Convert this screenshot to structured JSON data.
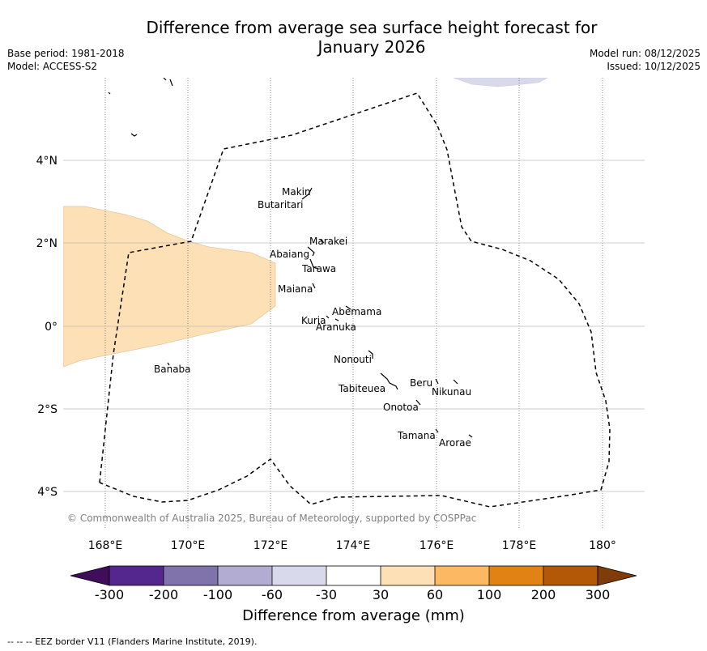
{
  "title_line1": "Difference from average sea surface height forecast for",
  "title_line2": "January 2026",
  "meta_left": [
    "Base period: 1981-2018",
    "Model: ACCESS-S2"
  ],
  "meta_right": [
    "Model run: 08/12/2025",
    "Issued: 10/12/2025"
  ],
  "map": {
    "lon_ticks": [
      "168°E",
      "170°E",
      "172°E",
      "174°E",
      "176°E",
      "178°E",
      "180°"
    ],
    "lat_ticks": [
      "4°N",
      "2°N",
      "0°",
      "2°S",
      "4°S"
    ],
    "copyright": "© Commonwealth of Australia 2025, Bureau of Meteorology, supported by COSPPac",
    "islands": [
      {
        "name": "Makin"
      },
      {
        "name": "Butaritari"
      },
      {
        "name": "Marakei"
      },
      {
        "name": "Abaiang"
      },
      {
        "name": "Tarawa"
      },
      {
        "name": "Maiana"
      },
      {
        "name": "Abemama"
      },
      {
        "name": "Kuria"
      },
      {
        "name": "Aranuka"
      },
      {
        "name": "Nonouti"
      },
      {
        "name": "Banaba"
      },
      {
        "name": "Beru"
      },
      {
        "name": "Tabiteuea"
      },
      {
        "name": "Nikunau"
      },
      {
        "name": "Onotoa"
      },
      {
        "name": "Tamana"
      },
      {
        "name": "Arorae"
      }
    ],
    "anomaly_regions": [
      {
        "category": "30 to 60",
        "color": "#fde0b6",
        "area": "west of EEZ near equator"
      },
      {
        "category": "-60 to -30",
        "color": "#d9d9ec",
        "area": "northern edge near 176-177°E"
      }
    ]
  },
  "colorbar": {
    "label": "Difference from average (mm)",
    "ticks": [
      "-300",
      "-200",
      "-100",
      "-60",
      "-30",
      "30",
      "60",
      "100",
      "200",
      "300"
    ],
    "colors": [
      "#3f0d59",
      "#54278f",
      "#8073ac",
      "#b2abd2",
      "#d8daeb",
      "#ffffff",
      "#fee0b6",
      "#fdb863",
      "#e08214",
      "#b35806",
      "#7f3b08"
    ]
  },
  "footer": "--  --  -- EEZ border V11 (Flanders Marine Institute, 2019)."
}
